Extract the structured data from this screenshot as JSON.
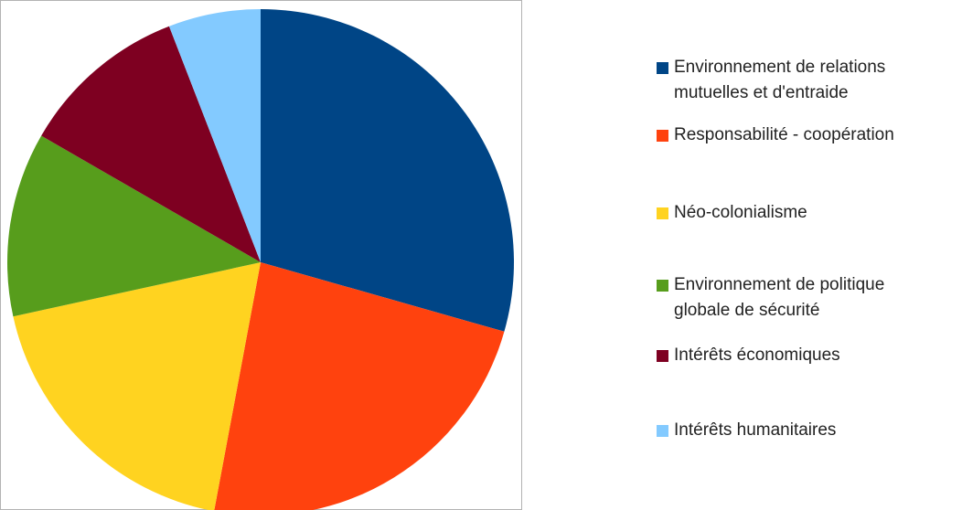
{
  "chart_data": {
    "type": "pie",
    "title": "",
    "slices": [
      {
        "label": "Environnement de relations mutuelles et d'entraide",
        "label_lines": [
          "Environnement de relations",
          "mutuelles et d'entraide"
        ],
        "value": 30,
        "color": "#004586"
      },
      {
        "label": "Responsabilité - coopération",
        "label_lines": [
          "Responsabilité - coopération"
        ],
        "value": 24,
        "color": "#ff420e"
      },
      {
        "label": "Néo-colonialisme",
        "label_lines": [
          "Néo-colonialisme"
        ],
        "value": 19,
        "color": "#ffd320"
      },
      {
        "label": "Environnement de politique globale de sécurité",
        "label_lines": [
          "Environnement de politique",
          "globale de sécurité"
        ],
        "value": 12,
        "color": "#579d1c"
      },
      {
        "label": "Intérêts économiques",
        "label_lines": [
          "Intérêts économiques"
        ],
        "value": 11,
        "color": "#7e0021"
      },
      {
        "label": "Intérêts humanitaires",
        "label_lines": [
          "Intérêts humanitaires"
        ],
        "value": 6,
        "color": "#83caff"
      }
    ],
    "start_angle_deg": 0,
    "direction": "clockwise",
    "legend_position": "right"
  }
}
